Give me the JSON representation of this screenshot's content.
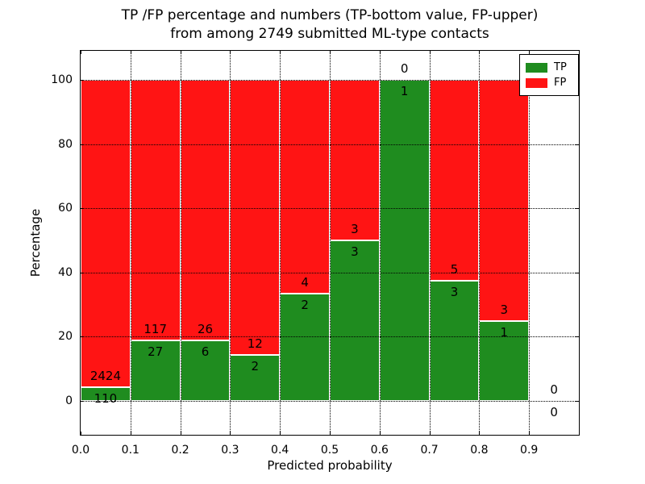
{
  "chart_data": {
    "type": "bar",
    "subtype": "stacked-percentage-histogram",
    "title_lines": [
      "TP /FP percentage and numbers (TP-bottom value, FP-upper)",
      "from among 2749 submitted ML-type contacts"
    ],
    "xlabel": "Predicted probability",
    "ylabel": "Percentage",
    "bin_starts": [
      0.0,
      0.1,
      0.2,
      0.3,
      0.4,
      0.5,
      0.6,
      0.7,
      0.8,
      0.9
    ],
    "bin_width": 0.1,
    "series": [
      {
        "name": "TP",
        "color": "#1f8c1f",
        "values": [
          110,
          27,
          6,
          2,
          2,
          3,
          1,
          3,
          1,
          0
        ]
      },
      {
        "name": "FP",
        "color": "#ff1414",
        "values": [
          2424,
          117,
          26,
          12,
          4,
          3,
          0,
          5,
          3,
          0
        ]
      }
    ],
    "tp_percent_by_bin": [
      4.34,
      18.75,
      18.75,
      14.29,
      33.33,
      50.0,
      100.0,
      37.5,
      25.0,
      0.0
    ],
    "xticks": [
      "0.0",
      "0.1",
      "0.2",
      "0.3",
      "0.4",
      "0.5",
      "0.6",
      "0.7",
      "0.8",
      "0.9"
    ],
    "xtick_values": [
      0.0,
      0.1,
      0.2,
      0.3,
      0.4,
      0.5,
      0.6,
      0.7,
      0.8,
      0.9
    ],
    "yticks": [
      "0",
      "20",
      "40",
      "60",
      "80",
      "100"
    ],
    "ytick_values": [
      0,
      20,
      40,
      60,
      80,
      100
    ],
    "xlim": [
      0.0,
      1.0
    ],
    "ylim": [
      -11,
      109
    ],
    "grid": {
      "visible": true,
      "style": "dotted",
      "color": "#000000"
    },
    "bar_edge_color": "#ffffff",
    "background": "#ffffff",
    "legend": {
      "position": "upper-right",
      "entries": [
        {
          "label": "TP",
          "color": "#1f8c1f"
        },
        {
          "label": "FP",
          "color": "#ff1414"
        }
      ]
    }
  }
}
